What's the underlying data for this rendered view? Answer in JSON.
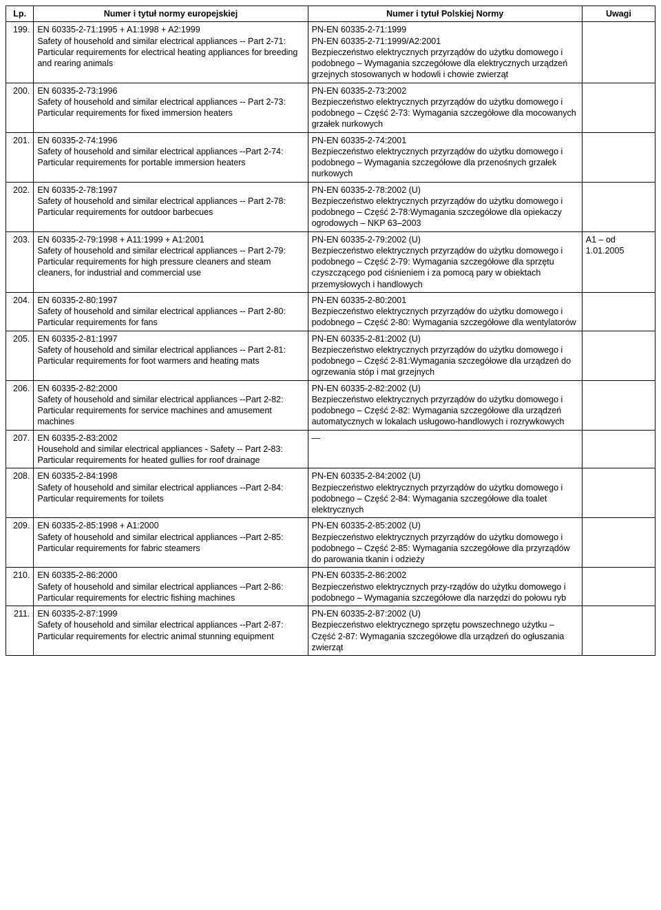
{
  "table": {
    "headers": {
      "lp": "Lp.",
      "eu": "Numer i tytuł normy europejskiej",
      "pl": "Numer i tytuł Polskiej Normy",
      "uwagi": "Uwagi"
    },
    "rows": [
      {
        "lp": "199.",
        "eu": "EN 60335-2-71:1995 + A1:1998 + A2:1999\nSafety of household and similar electrical appliances -- Part 2-71: Particular requirements for electrical heating appliances for breeding and rearing animals",
        "pl": "PN-EN 60335-2-71:1999\nPN-EN 60335-2-71:1999/A2:2001\nBezpieczeństwo elektrycznych przyrządów do użytku domowego i podobnego – Wymagania szczegółowe dla elektrycznych urządzeń grzejnych stosowanych w hodowli i chowie zwierząt",
        "uwagi": ""
      },
      {
        "lp": "200.",
        "eu": "EN 60335-2-73:1996\nSafety of household and similar electrical appliances -- Part 2-73: Particular requirements for fixed immersion heaters",
        "pl": "PN-EN 60335-2-73:2002\nBezpieczeństwo elektrycznych przyrządów do użytku domowego i podobnego – Część 2-73: Wymagania szczegółowe dla mocowanych grzałek nurkowych",
        "uwagi": ""
      },
      {
        "lp": "201.",
        "eu": "EN 60335-2-74:1996\nSafety of household and similar electrical appliances --Part 2-74: Particular requirements for portable immersion heaters",
        "pl": "PN-EN 60335-2-74:2001\nBezpieczeństwo elektrycznych przyrządów do użytku domowego i podobnego – Wymagania szczegółowe dla przenośnych grzałek nurkowych",
        "uwagi": ""
      },
      {
        "lp": "202.",
        "eu": "EN 60335-2-78:1997\nSafety of household and similar electrical appliances -- Part 2-78: Particular requirements for outdoor barbecues",
        "pl": "PN-EN 60335-2-78:2002 (U)\nBezpieczeństwo elektrycznych przyrządów do użytku domowego i podobnego – Część 2-78:Wymagania szczegółowe dla opiekaczy ogrodowych – NKP 63–2003",
        "uwagi": ""
      },
      {
        "lp": "203.",
        "eu": "EN 60335-2-79:1998 + A11:1999 + A1:2001\nSafety of household and similar electrical appliances -- Part 2-79: Particular requirements for high pressure cleaners and steam cleaners, for industrial and commercial use",
        "pl": "PN-EN 60335-2-79:2002 (U)\nBezpieczeństwo elektrycznych przyrządów do użytku domowego i podobnego – Część 2-79: Wymagania szczegółowe dla sprzętu czyszczącego pod ciśnieniem i za pomocą pary w obiektach przemysłowych i handlowych",
        "uwagi": "A1 – od 1.01.2005"
      },
      {
        "lp": "204.",
        "eu": "EN 60335-2-80:1997\nSafety of household and similar electrical appliances -- Part 2-80: Particular requirements for fans",
        "pl": "PN-EN 60335-2-80:2001\nBezpieczeństwo elektrycznych przyrządów do użytku domowego i podobnego – Część 2-80: Wymagania szczegółowe dla wentylatorów",
        "uwagi": ""
      },
      {
        "lp": "205.",
        "eu": "EN 60335-2-81:1997\nSafety of household and similar electrical appliances -- Part 2-81: Particular requirements for foot warmers and heating mats",
        "pl": "PN-EN 60335-2-81:2002 (U)\nBezpieczeństwo elektrycznych przyrządów do użytku domowego i podobnego – Część 2-81:Wymagania szczegółowe dla urządzeń do ogrzewania stóp i mat grzejnych",
        "uwagi": ""
      },
      {
        "lp": "206.",
        "eu": "EN 60335-2-82:2000\nSafety of household and similar electrical appliances --Part 2-82: Particular requirements for service machines and amusement machines",
        "pl": "PN-EN 60335-2-82:2002 (U)\nBezpieczeństwo elektrycznych przyrządów do użytku domowego i podobnego – Część 2-82: Wymagania szczegółowe dla urządzeń automatycznych w lokalach usługowo-handlowych i rozrywkowych",
        "uwagi": ""
      },
      {
        "lp": "207.",
        "eu": "EN 60335-2-83:2002\nHousehold and similar electrical appliances - Safety -- Part 2-83: Particular requirements for heated gullies for roof drainage",
        "pl": "—",
        "uwagi": ""
      },
      {
        "lp": "208.",
        "eu": "EN 60335-2-84:1998\nSafety of household and similar electrical appliances --Part 2-84: Particular requirements for toilets",
        "pl": "PN-EN 60335-2-84:2002 (U)\nBezpieczeństwo elektrycznych przyrządów do użytku domowego i podobnego – Część 2-84: Wymagania szczegółowe dla toalet elektrycznych",
        "uwagi": ""
      },
      {
        "lp": "209.",
        "eu": "EN 60335-2-85:1998 + A1:2000\nSafety of household and similar electrical appliances --Part 2-85: Particular requirements for fabric steamers",
        "pl": "PN-EN 60335-2-85:2002 (U)\nBezpieczeństwo elektrycznych przyrządów do użytku domowego i podobnego – Część 2-85: Wymagania szczegółowe dla przyrządów do parowania tkanin i odzieży",
        "uwagi": ""
      },
      {
        "lp": "210.",
        "eu": "EN 60335-2-86:2000\nSafety of household and similar electrical appliances --Part 2-86: Particular requirements for electric fishing machines",
        "pl": "PN-EN 60335-2-86:2002\nBezpieczeństwo elektrycznych przy-rządów do użytku domowego i podobnego – Wymagania szczegółowe dla narzędzi do połowu ryb",
        "uwagi": ""
      },
      {
        "lp": "211.",
        "eu": "EN 60335-2-87:1999\nSafety of household and similar electrical appliances --Part 2-87: Particular requirements for electric animal stunning equipment",
        "pl": "PN-EN 60335-2-87:2002 (U)\nBezpieczeństwo elektrycznego sprzętu powszechnego użytku – Część 2-87: Wymagania szczegółowe dla urządzeń do ogłuszania zwierząt",
        "uwagi": ""
      }
    ]
  }
}
